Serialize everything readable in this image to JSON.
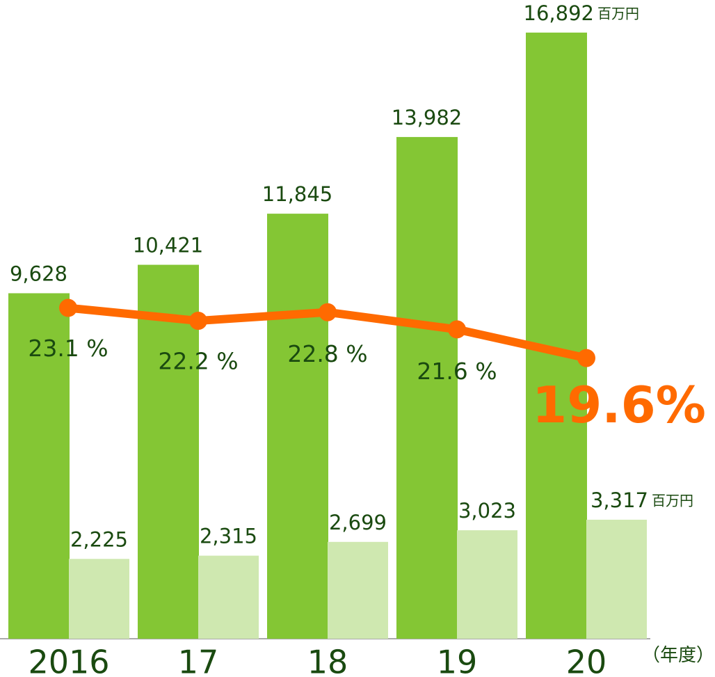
{
  "chart_data": {
    "type": "bar+line",
    "categories": [
      "2016",
      "17",
      "18",
      "19",
      "20"
    ],
    "x_label": "（年度）",
    "ylim": [
      0,
      17800
    ],
    "y2lim": [
      0,
      44.6
    ],
    "series": [
      {
        "color": "#84c634",
        "unit": "百万円",
        "values": [
          9628,
          10421,
          11845,
          13982,
          16892
        ],
        "value_labels": [
          "9,628",
          "10,421",
          "11,845",
          "13,982",
          "16,892"
        ]
      },
      {
        "color": "#cfe8b0",
        "unit": "百万円",
        "values": [
          2225,
          2315,
          2699,
          3023,
          3317
        ],
        "value_labels": [
          "2,225",
          "2,315",
          "2,699",
          "3,023",
          "3,317"
        ]
      },
      {
        "type": "line",
        "axis": "y2",
        "color": "#ff6a00",
        "values": [
          23.1,
          22.2,
          22.8,
          21.6,
          19.6
        ],
        "value_labels": [
          "23.1 %",
          "22.2 %",
          "22.8 %",
          "21.6 %",
          "19.6%"
        ]
      }
    ]
  }
}
